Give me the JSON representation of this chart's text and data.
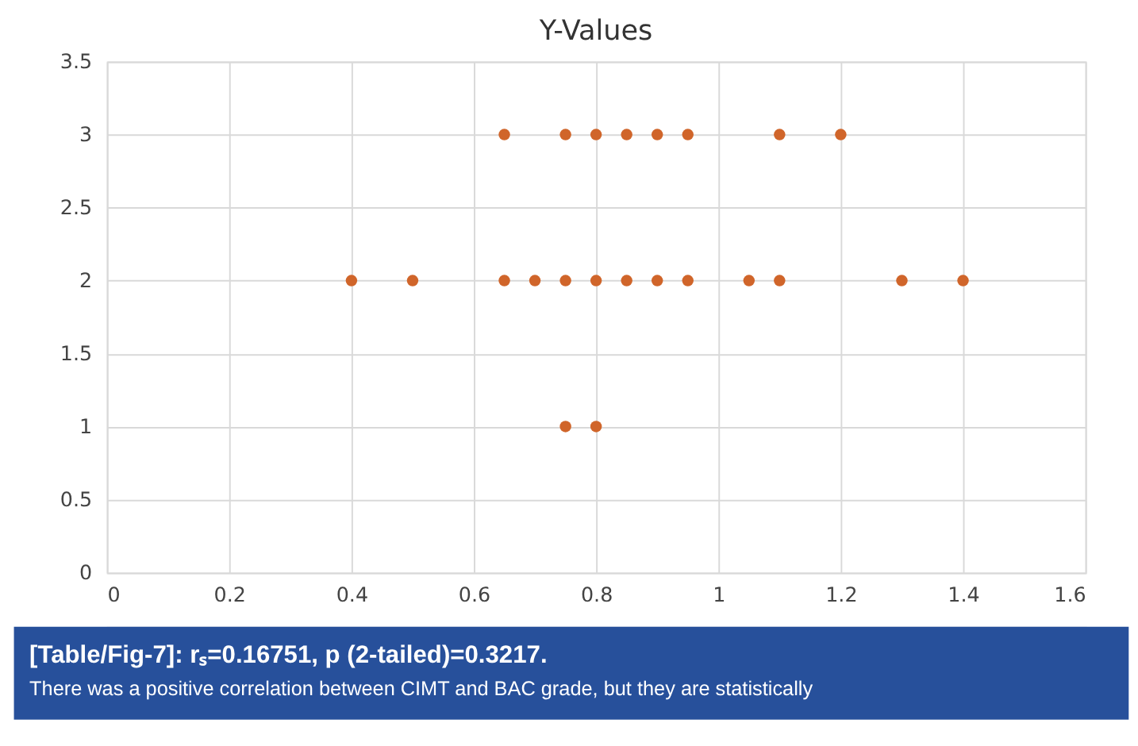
{
  "chart_data": {
    "type": "scatter",
    "title": "Y-Values",
    "x": [
      0.65,
      0.75,
      0.8,
      0.85,
      0.9,
      0.95,
      1.1,
      1.2,
      0.4,
      0.5,
      0.65,
      0.7,
      0.75,
      0.8,
      0.85,
      0.9,
      0.95,
      1.05,
      1.1,
      1.3,
      1.4,
      0.75,
      0.8
    ],
    "series": [
      {
        "color": "#d0652a",
        "values": [
          3,
          3,
          3,
          3,
          3,
          3,
          3,
          3,
          2,
          2,
          2,
          2,
          2,
          2,
          2,
          2,
          2,
          2,
          2,
          2,
          2,
          1,
          1
        ]
      }
    ],
    "xlim": [
      0,
      1.6
    ],
    "xticks": [
      0,
      0.2,
      0.4,
      0.6,
      0.8,
      1,
      1.2,
      1.4,
      1.6
    ],
    "ylim": [
      0,
      3.5
    ],
    "yticks": [
      0,
      0.5,
      1,
      1.5,
      2,
      2.5,
      3,
      3.5
    ],
    "grid": true,
    "marker": "circle",
    "annotations": [
      "[Table/Fig-7]: rₛ=0.16751, p (2-tailed)=0.3217.",
      "There was a positive correlation between CIMT and BAC grade, but they are statistically"
    ]
  }
}
